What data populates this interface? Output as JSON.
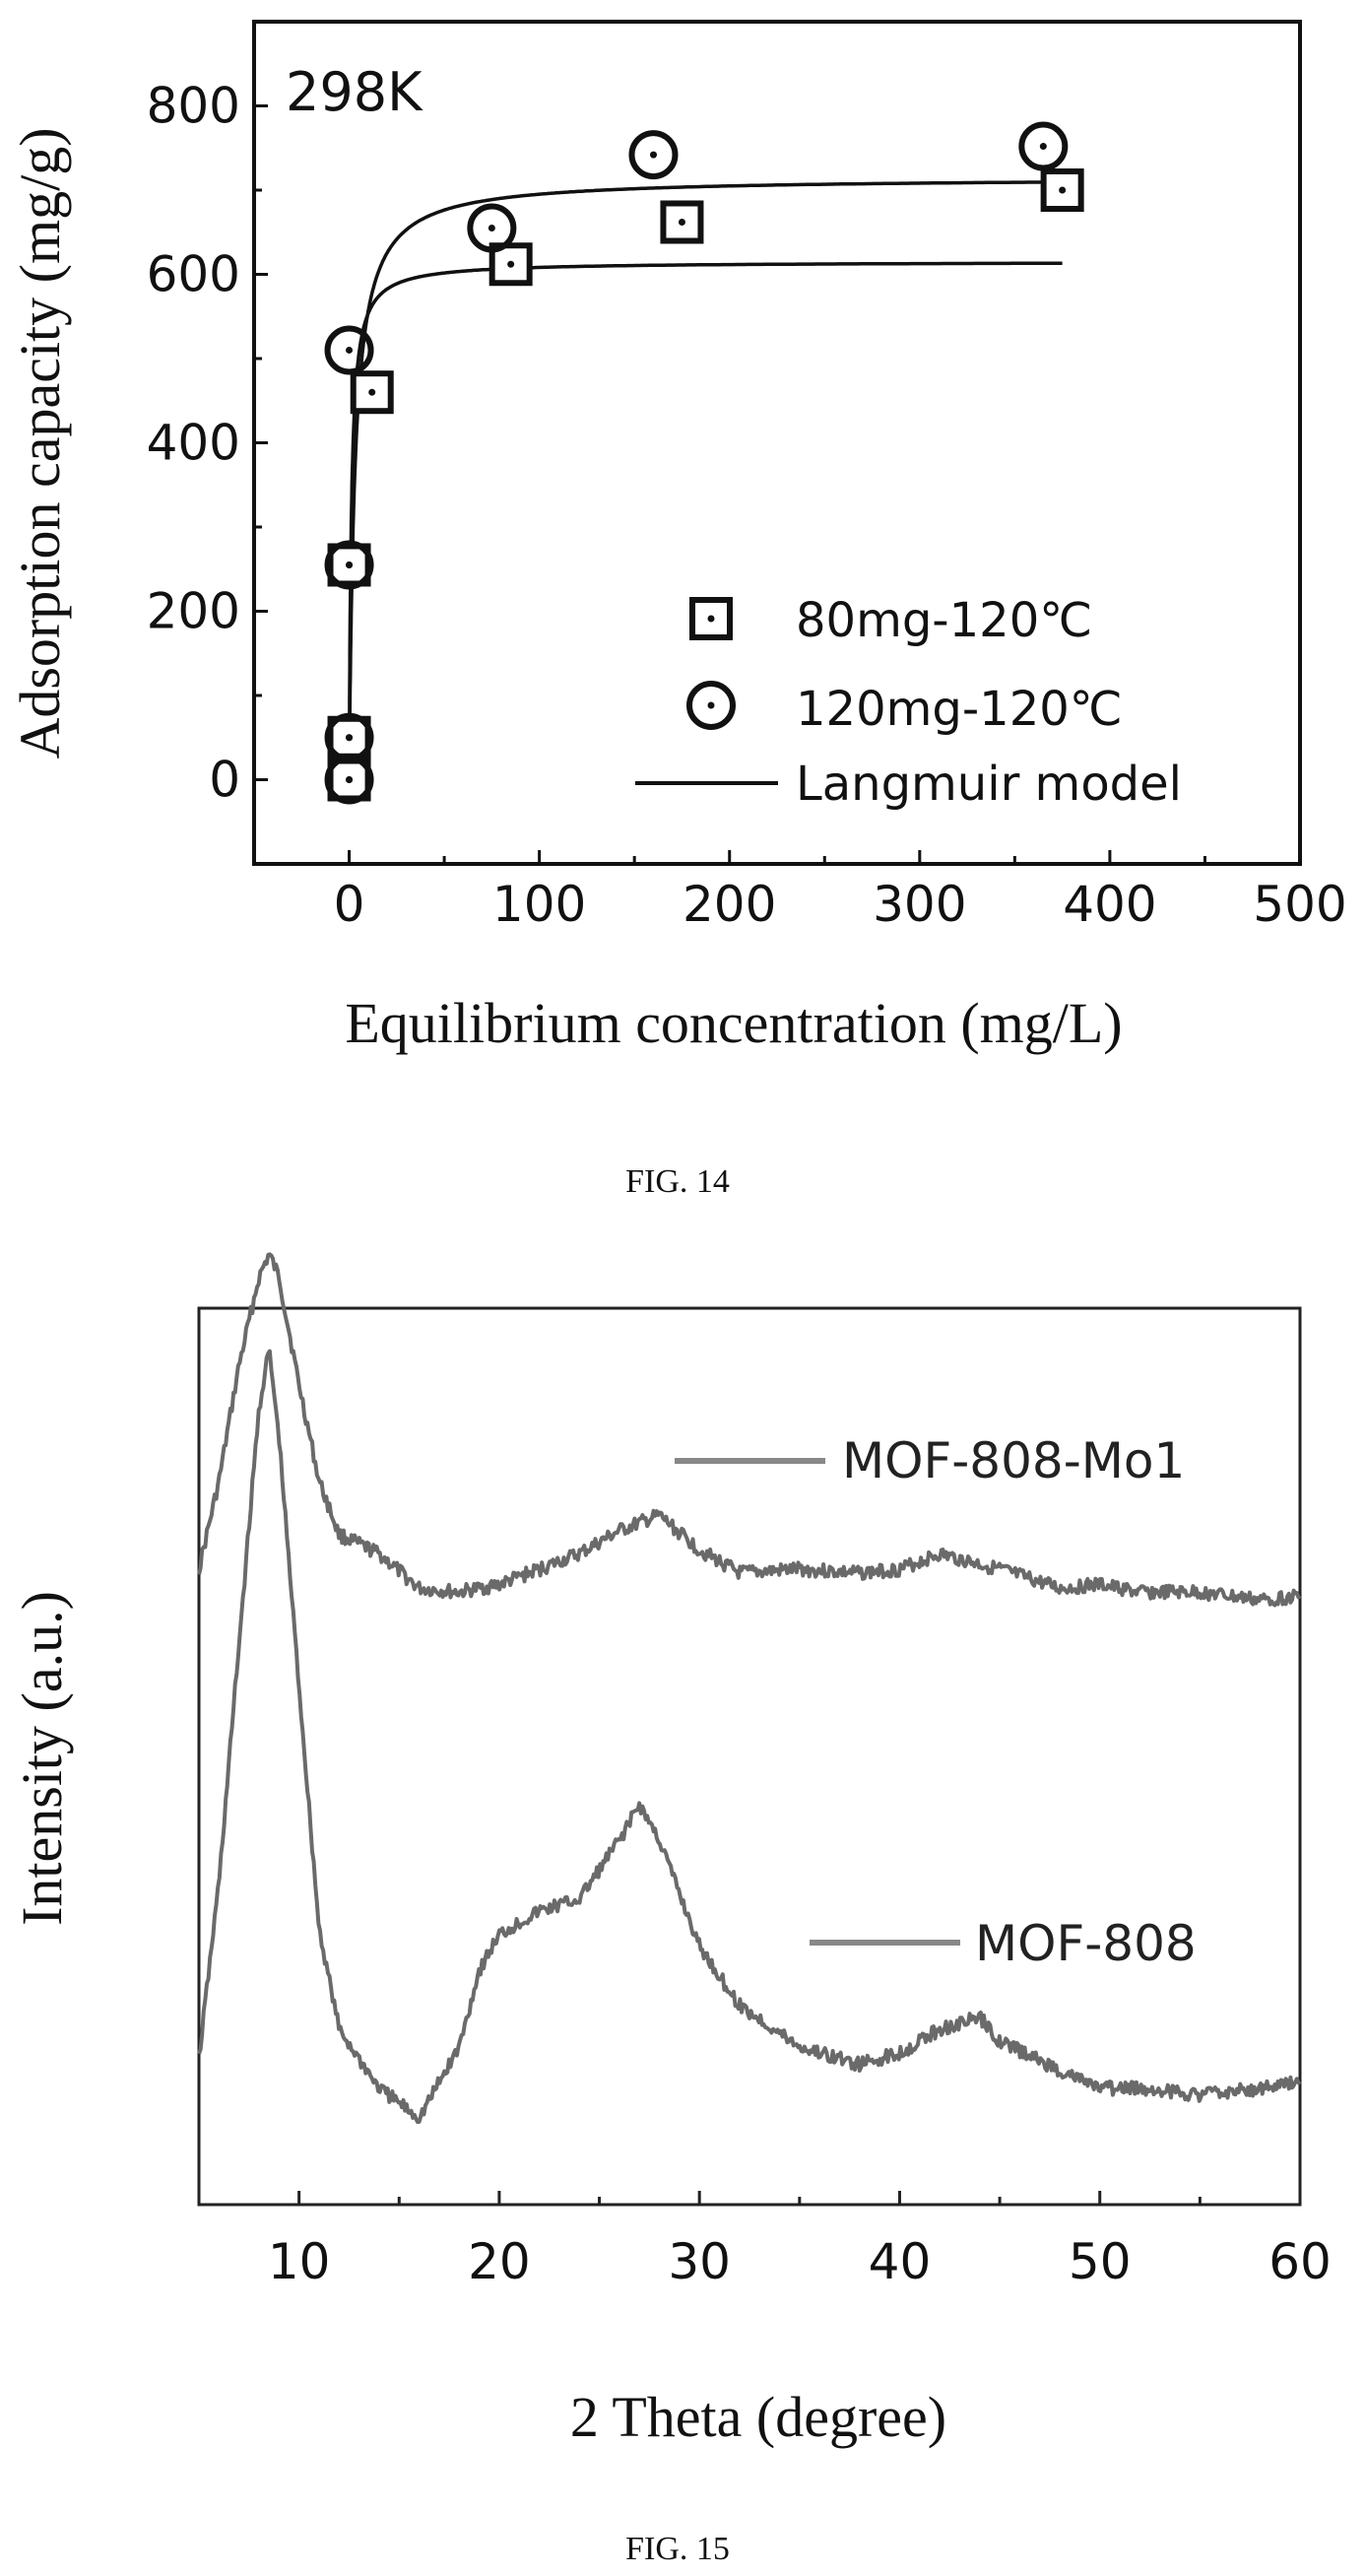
{
  "chart_data": [
    {
      "type": "scatter",
      "title": "",
      "annotation": "298K",
      "xlabel": "Equilibrium concentration (mg/L)",
      "ylabel": "Adsorption capacity (mg/g)",
      "xlim": [
        -50,
        500
      ],
      "ylim": [
        -100,
        900
      ],
      "xticks": [
        "0",
        "100",
        "200",
        "300",
        "400",
        "500"
      ],
      "yticks": [
        "0",
        "200",
        "400",
        "600",
        "800"
      ],
      "xtick_values": [
        0,
        100,
        200,
        300,
        400,
        500
      ],
      "ytick_values": [
        0,
        200,
        400,
        600,
        800
      ],
      "caption": "FIG. 14",
      "legend_position": "bottom-right",
      "series": [
        {
          "name": "80mg-120℃",
          "marker": "square",
          "x": [
            0,
            0,
            0,
            12,
            85,
            175,
            375
          ],
          "y": [
            0,
            50,
            255,
            460,
            612,
            662,
            700
          ]
        },
        {
          "name": "120mg-120℃",
          "marker": "circle",
          "x": [
            0,
            0,
            0,
            0,
            75,
            160,
            365
          ],
          "y": [
            0,
            50,
            255,
            510,
            655,
            742,
            752
          ]
        },
        {
          "name": "Langmuir model",
          "marker": "line",
          "curves": [
            {
              "qmax": 615,
              "K": 0.9,
              "xmax": 375
            },
            {
              "qmax": 715,
              "K": 0.35,
              "xmax": 375
            }
          ]
        }
      ]
    },
    {
      "type": "line",
      "title": "",
      "xlabel": "2 Theta (degree)",
      "ylabel": "Intensity (a.u.)",
      "xlim": [
        5,
        60
      ],
      "xticks": [
        "10",
        "20",
        "30",
        "40",
        "50",
        "60"
      ],
      "xtick_values": [
        10,
        20,
        30,
        40,
        50,
        60
      ],
      "caption": "FIG. 15",
      "y_ticks_shown": false,
      "series": [
        {
          "name": "MOF-808-Mo1",
          "x": [
            5,
            6,
            7,
            8,
            8.5,
            9,
            10,
            11,
            12,
            14,
            16,
            18,
            20,
            22,
            24,
            26,
            28,
            30,
            32,
            35,
            38,
            40,
            42,
            45,
            48,
            50,
            52,
            55,
            58,
            60
          ],
          "y": [
            0.1,
            0.33,
            0.63,
            0.86,
            0.92,
            0.86,
            0.58,
            0.33,
            0.19,
            0.14,
            0.05,
            0.04,
            0.06,
            0.1,
            0.14,
            0.2,
            0.24,
            0.15,
            0.09,
            0.1,
            0.09,
            0.1,
            0.14,
            0.1,
            0.05,
            0.06,
            0.04,
            0.04,
            0.02,
            0.03
          ]
        },
        {
          "name": "MOF-808",
          "x": [
            5,
            6,
            7,
            8,
            8.5,
            9,
            10,
            11,
            12,
            13,
            14,
            16,
            18,
            19,
            20,
            22,
            24,
            26,
            27,
            28,
            30,
            32,
            35,
            38,
            40,
            42,
            44,
            45,
            48,
            50,
            52,
            55,
            58,
            60
          ],
          "y": [
            0.15,
            0.45,
            0.85,
            1.25,
            1.35,
            1.2,
            0.78,
            0.37,
            0.2,
            0.15,
            0.1,
            0.05,
            0.17,
            0.3,
            0.36,
            0.4,
            0.42,
            0.52,
            0.58,
            0.52,
            0.34,
            0.24,
            0.17,
            0.14,
            0.16,
            0.2,
            0.22,
            0.18,
            0.13,
            0.1,
            0.1,
            0.09,
            0.1,
            0.11
          ]
        }
      ]
    }
  ]
}
